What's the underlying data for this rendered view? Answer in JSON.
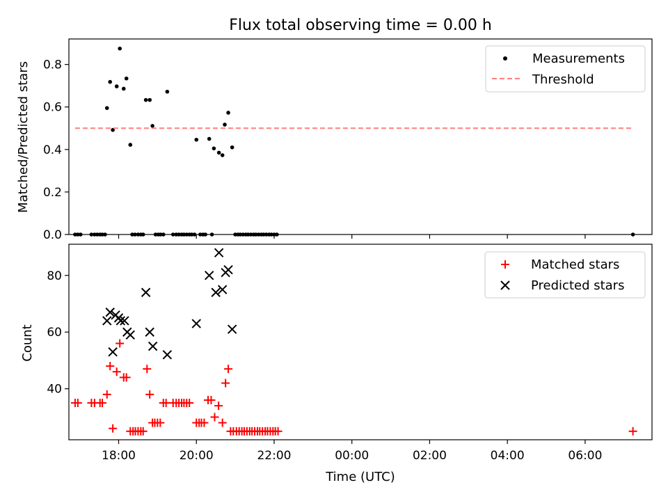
{
  "title": "Flux total observing time = 0.00 h",
  "chart_data": [
    {
      "type": "scatter",
      "ylabel": "Matched/Predicted stars",
      "xlabel": "",
      "xlim": [
        16.72,
        31.72
      ],
      "ylim": [
        0,
        0.92
      ],
      "yticks": [
        0.0,
        0.2,
        0.4,
        0.6,
        0.8
      ],
      "ytick_labels": [
        "0.0",
        "0.2",
        "0.4",
        "0.6",
        "0.8"
      ],
      "legend_position": "top-right",
      "series": [
        {
          "name": "Measurements",
          "marker": "dot",
          "color": "#000000",
          "points": [
            [
              17.7,
              0.595
            ],
            [
              17.78,
              0.718
            ],
            [
              17.85,
              0.492
            ],
            [
              17.95,
              0.697
            ],
            [
              18.03,
              0.875
            ],
            [
              18.13,
              0.686
            ],
            [
              18.2,
              0.734
            ],
            [
              18.3,
              0.422
            ],
            [
              18.7,
              0.633
            ],
            [
              18.8,
              0.633
            ],
            [
              18.87,
              0.511
            ],
            [
              19.25,
              0.672
            ],
            [
              20.0,
              0.446
            ],
            [
              20.33,
              0.45
            ],
            [
              20.45,
              0.405
            ],
            [
              20.58,
              0.385
            ],
            [
              20.67,
              0.373
            ],
            [
              20.73,
              0.517
            ],
            [
              20.82,
              0.573
            ],
            [
              20.92,
              0.41
            ],
            [
              16.88,
              0
            ],
            [
              16.95,
              0
            ],
            [
              17.02,
              0
            ],
            [
              17.3,
              0
            ],
            [
              17.38,
              0
            ],
            [
              17.45,
              0
            ],
            [
              17.52,
              0
            ],
            [
              17.58,
              0
            ],
            [
              17.65,
              0
            ],
            [
              18.35,
              0
            ],
            [
              18.42,
              0
            ],
            [
              18.5,
              0
            ],
            [
              18.57,
              0
            ],
            [
              18.63,
              0
            ],
            [
              18.95,
              0
            ],
            [
              19.02,
              0
            ],
            [
              19.08,
              0
            ],
            [
              19.15,
              0
            ],
            [
              19.4,
              0
            ],
            [
              19.48,
              0
            ],
            [
              19.55,
              0
            ],
            [
              19.62,
              0
            ],
            [
              19.68,
              0
            ],
            [
              19.75,
              0
            ],
            [
              19.82,
              0
            ],
            [
              19.88,
              0
            ],
            [
              19.95,
              0
            ],
            [
              20.1,
              0
            ],
            [
              20.17,
              0
            ],
            [
              20.23,
              0
            ],
            [
              20.4,
              0
            ],
            [
              21.0,
              0
            ],
            [
              21.07,
              0
            ],
            [
              21.13,
              0
            ],
            [
              21.2,
              0
            ],
            [
              21.27,
              0
            ],
            [
              21.33,
              0
            ],
            [
              21.4,
              0
            ],
            [
              21.47,
              0
            ],
            [
              21.53,
              0
            ],
            [
              21.6,
              0
            ],
            [
              21.67,
              0
            ],
            [
              21.73,
              0
            ],
            [
              21.8,
              0
            ],
            [
              21.87,
              0
            ],
            [
              21.93,
              0
            ],
            [
              22.0,
              0
            ],
            [
              22.07,
              0
            ],
            [
              31.23,
              0
            ]
          ]
        },
        {
          "name": "Threshold",
          "marker": "dashed-line",
          "color": "#ff7f7f",
          "points": [
            [
              16.88,
              0.5
            ],
            [
              31.23,
              0.5
            ]
          ]
        }
      ]
    },
    {
      "type": "scatter",
      "ylabel": "Count",
      "xlabel": "Time (UTC)",
      "xlim": [
        16.72,
        31.72
      ],
      "ylim": [
        22,
        91
      ],
      "yticks": [
        40,
        60,
        80
      ],
      "ytick_labels": [
        "40",
        "60",
        "80"
      ],
      "xticks": [
        18,
        20,
        22,
        24,
        26,
        28,
        30
      ],
      "xtick_labels": [
        "18:00",
        "20:00",
        "22:00",
        "00:00",
        "02:00",
        "04:00",
        "06:00"
      ],
      "legend_position": "top-right",
      "series": [
        {
          "name": "Matched stars",
          "marker": "plus",
          "color": "#ff0000",
          "points": [
            [
              16.88,
              35
            ],
            [
              16.95,
              35
            ],
            [
              17.3,
              35
            ],
            [
              17.38,
              35
            ],
            [
              17.52,
              35
            ],
            [
              17.58,
              35
            ],
            [
              17.7,
              38
            ],
            [
              17.78,
              48
            ],
            [
              17.85,
              26
            ],
            [
              17.95,
              46
            ],
            [
              18.03,
              56
            ],
            [
              18.13,
              44
            ],
            [
              18.2,
              44
            ],
            [
              18.3,
              25
            ],
            [
              18.37,
              25
            ],
            [
              18.43,
              25
            ],
            [
              18.5,
              25
            ],
            [
              18.57,
              25
            ],
            [
              18.63,
              25
            ],
            [
              18.73,
              47
            ],
            [
              18.8,
              38
            ],
            [
              18.87,
              28
            ],
            [
              18.93,
              28
            ],
            [
              19.0,
              28
            ],
            [
              19.07,
              28
            ],
            [
              19.15,
              35
            ],
            [
              19.22,
              35
            ],
            [
              19.4,
              35
            ],
            [
              19.48,
              35
            ],
            [
              19.55,
              35
            ],
            [
              19.62,
              35
            ],
            [
              19.68,
              35
            ],
            [
              19.75,
              35
            ],
            [
              19.82,
              35
            ],
            [
              20.0,
              28
            ],
            [
              20.07,
              28
            ],
            [
              20.13,
              28
            ],
            [
              20.2,
              28
            ],
            [
              20.3,
              36
            ],
            [
              20.38,
              36
            ],
            [
              20.47,
              30
            ],
            [
              20.57,
              34
            ],
            [
              20.67,
              28
            ],
            [
              20.75,
              42
            ],
            [
              20.82,
              47
            ],
            [
              20.88,
              25
            ],
            [
              20.95,
              25
            ],
            [
              21.03,
              25
            ],
            [
              21.1,
              25
            ],
            [
              21.17,
              25
            ],
            [
              21.23,
              25
            ],
            [
              21.3,
              25
            ],
            [
              21.37,
              25
            ],
            [
              21.43,
              25
            ],
            [
              21.5,
              25
            ],
            [
              21.57,
              25
            ],
            [
              21.63,
              25
            ],
            [
              21.7,
              25
            ],
            [
              21.77,
              25
            ],
            [
              21.83,
              25
            ],
            [
              21.9,
              25
            ],
            [
              21.97,
              25
            ],
            [
              22.03,
              25
            ],
            [
              22.1,
              25
            ],
            [
              31.23,
              25
            ]
          ]
        },
        {
          "name": "Predicted stars",
          "marker": "x",
          "color": "#000000",
          "points": [
            [
              17.7,
              64
            ],
            [
              17.78,
              67
            ],
            [
              17.85,
              53
            ],
            [
              17.92,
              66
            ],
            [
              18.0,
              65
            ],
            [
              18.05,
              64
            ],
            [
              18.15,
              64
            ],
            [
              18.22,
              60
            ],
            [
              18.3,
              59
            ],
            [
              18.7,
              74
            ],
            [
              18.8,
              60
            ],
            [
              18.88,
              55
            ],
            [
              19.25,
              52
            ],
            [
              20.0,
              63
            ],
            [
              20.33,
              80
            ],
            [
              20.5,
              74
            ],
            [
              20.58,
              88
            ],
            [
              20.67,
              75
            ],
            [
              20.75,
              81
            ],
            [
              20.82,
              82
            ],
            [
              20.92,
              61
            ]
          ]
        }
      ]
    }
  ]
}
